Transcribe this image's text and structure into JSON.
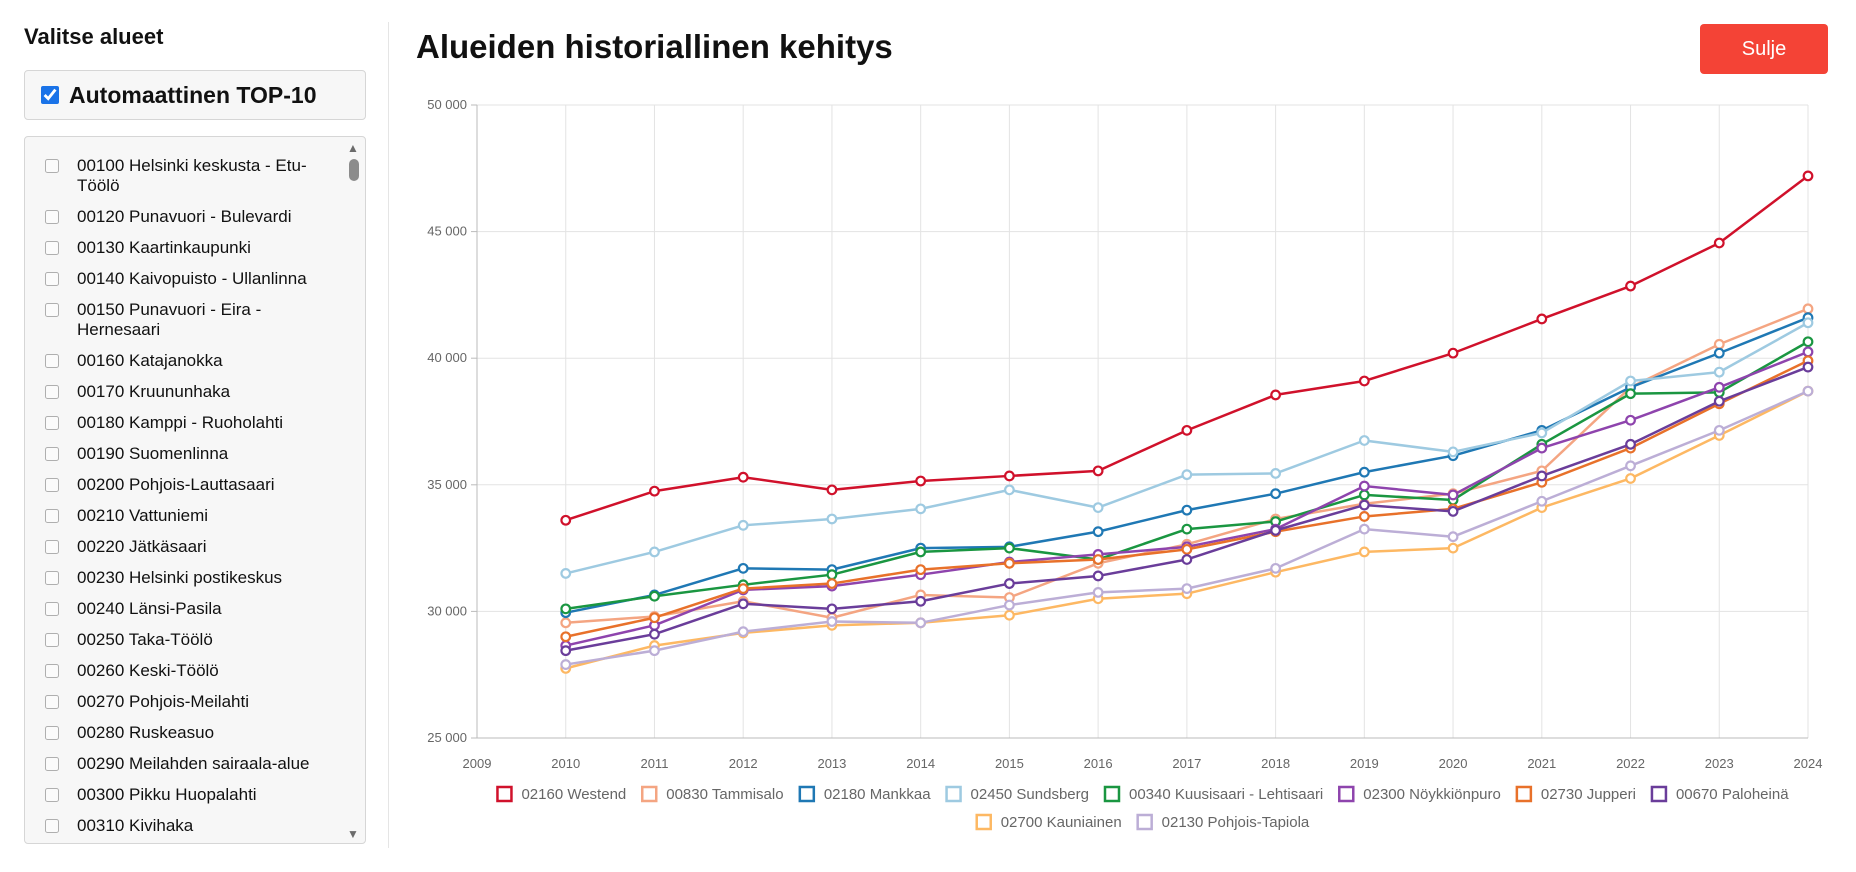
{
  "sidebar": {
    "title": "Valitse alueet",
    "auto_top10": {
      "label": "Automaattinen TOP-10",
      "checked": true
    },
    "areas": [
      "00100 Helsinki keskusta - Etu-Töölö",
      "00120 Punavuori - Bulevardi",
      "00130 Kaartinkaupunki",
      "00140 Kaivopuisto - Ullanlinna",
      "00150 Punavuori - Eira - Hernesaari",
      "00160 Katajanokka",
      "00170 Kruununhaka",
      "00180 Kamppi - Ruoholahti",
      "00190 Suomenlinna",
      "00200 Pohjois-Lauttasaari",
      "00210 Vattuniemi",
      "00220 Jätkäsaari",
      "00230 Helsinki postikeskus",
      "00240 Länsi-Pasila",
      "00250 Taka-Töölö",
      "00260 Keski-Töölö",
      "00270 Pohjois-Meilahti",
      "00280 Ruskeasuo",
      "00290 Meilahden sairaala-alue",
      "00300 Pikku Huopalahti",
      "00310 Kivihaka"
    ]
  },
  "header": {
    "title": "Alueiden historiallinen kehitys",
    "close_label": "Sulje"
  },
  "chart_data": {
    "type": "line",
    "title": "",
    "xlabel": "",
    "ylabel": "",
    "xlim": [
      2009,
      2024
    ],
    "ylim": [
      25000,
      50000
    ],
    "x_ticks": [
      2009,
      2010,
      2011,
      2012,
      2013,
      2014,
      2015,
      2016,
      2017,
      2018,
      2019,
      2020,
      2021,
      2022,
      2023,
      2024
    ],
    "y_ticks": [
      25000,
      30000,
      35000,
      40000,
      45000,
      50000
    ],
    "y_tick_labels": [
      "25 000",
      "30 000",
      "35 000",
      "40 000",
      "45 000",
      "50 000"
    ],
    "grid": true,
    "legend_position": "bottom",
    "x": [
      2010,
      2011,
      2012,
      2013,
      2014,
      2015,
      2016,
      2017,
      2018,
      2019,
      2020,
      2021,
      2022,
      2023,
      2024
    ],
    "series": [
      {
        "name": "02160 Westend",
        "color": "#d0112b",
        "values": [
          33600,
          34750,
          35300,
          34800,
          35150,
          35350,
          35550,
          37150,
          38550,
          39100,
          40200,
          41550,
          42850,
          44550,
          47200
        ]
      },
      {
        "name": "00830 Tammisalo",
        "color": "#f4a582",
        "values": [
          29550,
          29800,
          30400,
          29750,
          30650,
          30550,
          31900,
          32650,
          33650,
          34250,
          34650,
          35550,
          38850,
          40550,
          41950
        ]
      },
      {
        "name": "02180 Mankkaa",
        "color": "#1f78b4",
        "values": [
          29950,
          30650,
          31700,
          31650,
          32500,
          32550,
          33150,
          34000,
          34650,
          35500,
          36150,
          37150,
          38850,
          40200,
          41600
        ]
      },
      {
        "name": "02450 Sundsberg",
        "color": "#9ecae1",
        "values": [
          31500,
          32350,
          33400,
          33650,
          34050,
          34800,
          34100,
          35400,
          35450,
          36750,
          36300,
          37050,
          39100,
          39450,
          41400
        ]
      },
      {
        "name": "00340 Kuusisaari - Lehtisaari",
        "color": "#1a9641",
        "values": [
          30100,
          30600,
          31050,
          31450,
          32350,
          32500,
          32050,
          33250,
          33550,
          34600,
          34400,
          36600,
          38600,
          38650,
          40650
        ]
      },
      {
        "name": "02300 Nöykkiönpuro",
        "color": "#8e44ad",
        "values": [
          28650,
          29450,
          30850,
          31000,
          31450,
          31950,
          32250,
          32550,
          33250,
          34950,
          34600,
          36450,
          37550,
          38850,
          40250
        ]
      },
      {
        "name": "02730 Jupperi",
        "color": "#e8712a",
        "values": [
          29000,
          29750,
          30900,
          31100,
          31650,
          31900,
          32050,
          32450,
          33150,
          33750,
          34050,
          35100,
          36450,
          38200,
          39900
        ]
      },
      {
        "name": "00670 Paloheinä",
        "color": "#6a3d9a",
        "values": [
          28450,
          29100,
          30300,
          30100,
          30400,
          31100,
          31400,
          32050,
          33200,
          34200,
          33950,
          35350,
          36600,
          38300,
          39650
        ]
      },
      {
        "name": "02700 Kauniainen",
        "color": "#fdb863",
        "values": [
          27750,
          28650,
          29150,
          29450,
          29550,
          29850,
          30500,
          30700,
          31550,
          32350,
          32500,
          34100,
          35250,
          36950,
          38700
        ]
      },
      {
        "name": "02130 Pohjois-Tapiola",
        "color": "#bcaed6",
        "values": [
          27900,
          28450,
          29200,
          29600,
          29550,
          30250,
          30750,
          30900,
          31700,
          33250,
          32950,
          34350,
          35750,
          37150,
          38700
        ]
      }
    ]
  }
}
